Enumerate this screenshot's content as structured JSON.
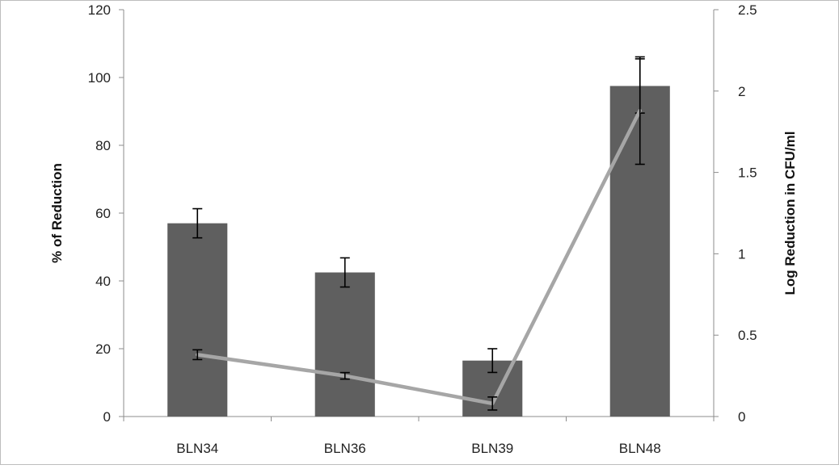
{
  "chart_data": {
    "type": "bar",
    "categories": [
      "BLN34",
      "BLN36",
      "BLN39",
      "BLN48"
    ],
    "y_left": {
      "label": "% of Reduction",
      "lim": [
        0,
        120
      ],
      "ticks": [
        "0",
        "20",
        "40",
        "60",
        "80",
        "100",
        "120"
      ]
    },
    "y_right": {
      "label": "Log Reduction in CFU/ml",
      "lim": [
        0,
        2.5
      ],
      "ticks": [
        "0",
        "0.5",
        "1",
        "1.5",
        "2",
        "2.5"
      ]
    },
    "series": [
      {
        "type": "bar",
        "axis": "left",
        "values": [
          57,
          42.5,
          16.5,
          97.5
        ],
        "errors": [
          4.3,
          4.3,
          3.5,
          8
        ],
        "color": "#5f5f5f"
      },
      {
        "type": "line",
        "axis": "right",
        "values": [
          0.38,
          0.25,
          0.08,
          1.88
        ],
        "errors": [
          0.03,
          0.02,
          0.04,
          0.33
        ],
        "color": "#a6a6a6"
      }
    ],
    "grid": false,
    "legend": "none"
  }
}
